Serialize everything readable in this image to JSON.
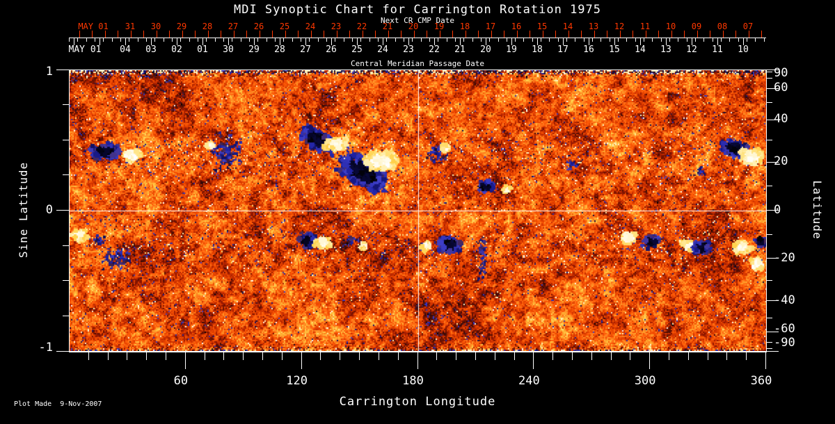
{
  "title": "MDI Synoptic Chart for Carrington Rotation 1975",
  "plot_made": "Plot Made  9-Nov-2007",
  "colors": {
    "background": "#000000",
    "foreground": "#ffffff",
    "secondary_axis_red": "#ff3800",
    "grid_line": "#ffffff",
    "colormap": [
      [
        0.0,
        "#000000"
      ],
      [
        0.05,
        "#0a0a46"
      ],
      [
        0.09,
        "#1e20a0"
      ],
      [
        0.13,
        "#3e3ec8"
      ],
      [
        0.15,
        "#46285a"
      ],
      [
        0.18,
        "#30080a"
      ],
      [
        0.24,
        "#5a1002"
      ],
      [
        0.32,
        "#8f1500"
      ],
      [
        0.4,
        "#c62d00"
      ],
      [
        0.48,
        "#e84400"
      ],
      [
        0.56,
        "#ff5c08"
      ],
      [
        0.64,
        "#ff7d1e"
      ],
      [
        0.74,
        "#ffab30"
      ],
      [
        0.83,
        "#ffd34d"
      ],
      [
        0.91,
        "#fff0b0"
      ],
      [
        1.0,
        "#ffffff"
      ]
    ]
  },
  "axes": {
    "top_red": {
      "axis_label": "Next CR CMP Date",
      "first_label": "MAY 01",
      "date_labels": [
        "31",
        "30",
        "29",
        "28",
        "27",
        "26",
        "25",
        "24",
        "23",
        "22",
        "21",
        "20",
        "19",
        "18",
        "17",
        "16",
        "15",
        "14",
        "13",
        "12",
        "11",
        "10",
        "09",
        "08",
        "07"
      ]
    },
    "top_white": {
      "axis_label": "Central Meridian Passage Date",
      "first_label": "MAY 01",
      "date_labels": [
        "04",
        "03",
        "02",
        "01",
        "30",
        "29",
        "28",
        "27",
        "26",
        "25",
        "24",
        "23",
        "22",
        "21",
        "20",
        "19",
        "18",
        "17",
        "16",
        "15",
        "14",
        "13",
        "12",
        "11",
        "10"
      ]
    },
    "left": {
      "label": "Sine Latitude",
      "tick_values": [
        1,
        0,
        -1
      ],
      "tick_labels": [
        "1",
        "0",
        "-1"
      ],
      "minor_tick_step": 0.25,
      "range": [
        1,
        -1
      ]
    },
    "right": {
      "label": "Latitude",
      "tick_values": [
        90,
        60,
        40,
        20,
        0,
        -20,
        -40,
        -60,
        -90
      ],
      "tick_labels": [
        "90",
        "60",
        "40",
        "20",
        "0",
        "-20",
        "-40",
        "-60",
        "-90"
      ],
      "minor_tick_values": [
        80,
        70,
        50,
        30,
        10,
        -10,
        -30,
        -50,
        -70,
        -80
      ]
    },
    "bottom": {
      "label": "Carrington Longitude",
      "tick_values": [
        60,
        120,
        180,
        240,
        300,
        360
      ],
      "tick_labels": [
        "60",
        "120",
        "180",
        "240",
        "300",
        "360"
      ],
      "minor_tick_step_deg": 10,
      "range": [
        0,
        360
      ]
    }
  },
  "chart_data": {
    "type": "heatmap",
    "title": "MDI Synoptic Chart for Carrington Rotation 1975",
    "xlabel": "Carrington Longitude",
    "ylabel_left": "Sine Latitude",
    "ylabel_right": "Latitude",
    "xlim": [
      0,
      360
    ],
    "ylim_sine_latitude": [
      -1,
      1
    ],
    "grid_lines": {
      "vertical_at_longitude": 180,
      "horizontal_at_sine_latitude": 0
    },
    "description": "Full-surface solar magnetogram map: quiet-sun orange-red salt-and-pepper field with dark (negative polarity, black/blue) and bright (positive polarity, white/yellow) active regions concentrated in two activity belts near +-20 deg latitude; noisy dark/blue speckled bands at both poles.",
    "quiet_sun_level": 0.5,
    "active_regions": [
      {
        "lon": 18.3,
        "slat": 0.43,
        "rlon": 7.9,
        "rslat": 0.064,
        "tilt": 0,
        "polarity": "negative",
        "style": "strong"
      },
      {
        "lon": 31.6,
        "slat": 0.4,
        "rlon": 5.0,
        "rslat": 0.049,
        "tilt": 0,
        "polarity": "positive",
        "style": "strong"
      },
      {
        "lon": 80.2,
        "slat": 0.43,
        "rlon": 9.0,
        "rslat": 0.138,
        "tilt": 0,
        "polarity": "negative",
        "style": "speckle"
      },
      {
        "lon": 72.3,
        "slat": 0.47,
        "rlon": 2.2,
        "rslat": 0.025,
        "tilt": 0,
        "polarity": "positive",
        "style": "strong"
      },
      {
        "lon": 128.0,
        "slat": 0.51,
        "rlon": 10.8,
        "rslat": 0.074,
        "tilt": 25,
        "polarity": "negative",
        "style": "strong"
      },
      {
        "lon": 137.0,
        "slat": 0.48,
        "rlon": 6.5,
        "rslat": 0.049,
        "tilt": 0,
        "polarity": "positive",
        "style": "strong"
      },
      {
        "lon": 151.4,
        "slat": 0.28,
        "rlon": 14.4,
        "rslat": 0.109,
        "tilt": 30,
        "polarity": "negative",
        "style": "strong"
      },
      {
        "lon": 160.4,
        "slat": 0.36,
        "rlon": 9.0,
        "rslat": 0.074,
        "tilt": 0,
        "polarity": "positive",
        "style": "strong"
      },
      {
        "lon": 189.2,
        "slat": 0.41,
        "rlon": 6.5,
        "rslat": 0.069,
        "tilt": 0,
        "polarity": "negative",
        "style": "speckle"
      },
      {
        "lon": 193.9,
        "slat": 0.45,
        "rlon": 2.2,
        "rslat": 0.025,
        "tilt": 0,
        "polarity": "positive",
        "style": "strong"
      },
      {
        "lon": 214.4,
        "slat": 0.18,
        "rlon": 4.7,
        "rslat": 0.044,
        "tilt": 0,
        "polarity": "negative",
        "style": "strong"
      },
      {
        "lon": 225.5,
        "slat": 0.16,
        "rlon": 2.9,
        "rslat": 0.03,
        "tilt": 0,
        "polarity": "positive",
        "style": "strong"
      },
      {
        "lon": 259.3,
        "slat": 0.33,
        "rlon": 4.3,
        "rslat": 0.04,
        "tilt": 0,
        "polarity": "negative",
        "style": "speckle"
      },
      {
        "lon": 325.1,
        "slat": 0.29,
        "rlon": 3.6,
        "rslat": 0.04,
        "tilt": 0,
        "polarity": "negative",
        "style": "speckle"
      },
      {
        "lon": 343.1,
        "slat": 0.45,
        "rlon": 7.9,
        "rslat": 0.064,
        "tilt": 15,
        "polarity": "negative",
        "style": "strong"
      },
      {
        "lon": 352.1,
        "slat": 0.39,
        "rlon": 7.2,
        "rslat": 0.059,
        "tilt": 0,
        "polarity": "positive",
        "style": "strong"
      },
      {
        "lon": 4.7,
        "slat": -0.17,
        "rlon": 4.3,
        "rslat": 0.04,
        "tilt": 0,
        "polarity": "positive",
        "style": "strong"
      },
      {
        "lon": 15.5,
        "slat": -0.2,
        "rlon": 4.3,
        "rslat": 0.04,
        "tilt": 0,
        "polarity": "negative",
        "style": "speckle"
      },
      {
        "lon": 23.7,
        "slat": -0.33,
        "rlon": 7.9,
        "rslat": 0.089,
        "tilt": 0,
        "polarity": "negative",
        "style": "speckle"
      },
      {
        "lon": 122.6,
        "slat": -0.2,
        "rlon": 5.0,
        "rslat": 0.054,
        "tilt": 0,
        "polarity": "negative",
        "style": "strong"
      },
      {
        "lon": 130.6,
        "slat": -0.22,
        "rlon": 4.7,
        "rslat": 0.044,
        "tilt": 0,
        "polarity": "positive",
        "style": "strong"
      },
      {
        "lon": 146.0,
        "slat": -0.2,
        "rlon": 4.3,
        "rslat": 0.04,
        "tilt": 0,
        "polarity": "negative",
        "style": "speckle"
      },
      {
        "lon": 151.4,
        "slat": -0.24,
        "rlon": 2.5,
        "rslat": 0.025,
        "tilt": 0,
        "polarity": "positive",
        "style": "strong"
      },
      {
        "lon": 183.8,
        "slat": -0.24,
        "rlon": 3.2,
        "rslat": 0.035,
        "tilt": 0,
        "polarity": "positive",
        "style": "strong"
      },
      {
        "lon": 195.7,
        "slat": -0.23,
        "rlon": 6.1,
        "rslat": 0.064,
        "tilt": 0,
        "polarity": "negative",
        "style": "strong"
      },
      {
        "lon": 212.6,
        "slat": -0.33,
        "rlon": 2.2,
        "rslat": 0.173,
        "tilt": 0,
        "polarity": "negative",
        "style": "speckle"
      },
      {
        "lon": 288.1,
        "slat": -0.18,
        "rlon": 4.7,
        "rslat": 0.04,
        "tilt": 0,
        "polarity": "positive",
        "style": "strong"
      },
      {
        "lon": 299.6,
        "slat": -0.21,
        "rlon": 4.7,
        "rslat": 0.049,
        "tilt": 0,
        "polarity": "negative",
        "style": "strong"
      },
      {
        "lon": 319.7,
        "slat": -0.24,
        "rlon": 4.0,
        "rslat": 0.04,
        "tilt": 0,
        "polarity": "positive",
        "style": "strong"
      },
      {
        "lon": 325.9,
        "slat": -0.25,
        "rlon": 5.0,
        "rslat": 0.049,
        "tilt": 0,
        "polarity": "negative",
        "style": "strong"
      },
      {
        "lon": 347.4,
        "slat": -0.25,
        "rlon": 5.0,
        "rslat": 0.044,
        "tilt": 0,
        "polarity": "positive",
        "style": "strong"
      },
      {
        "lon": 356.4,
        "slat": -0.21,
        "rlon": 3.6,
        "rslat": 0.04,
        "tilt": 0,
        "polarity": "negative",
        "style": "strong"
      },
      {
        "lon": 354.6,
        "slat": -0.37,
        "rlon": 3.6,
        "rslat": 0.049,
        "tilt": 0,
        "polarity": "positive",
        "style": "strong"
      }
    ]
  }
}
